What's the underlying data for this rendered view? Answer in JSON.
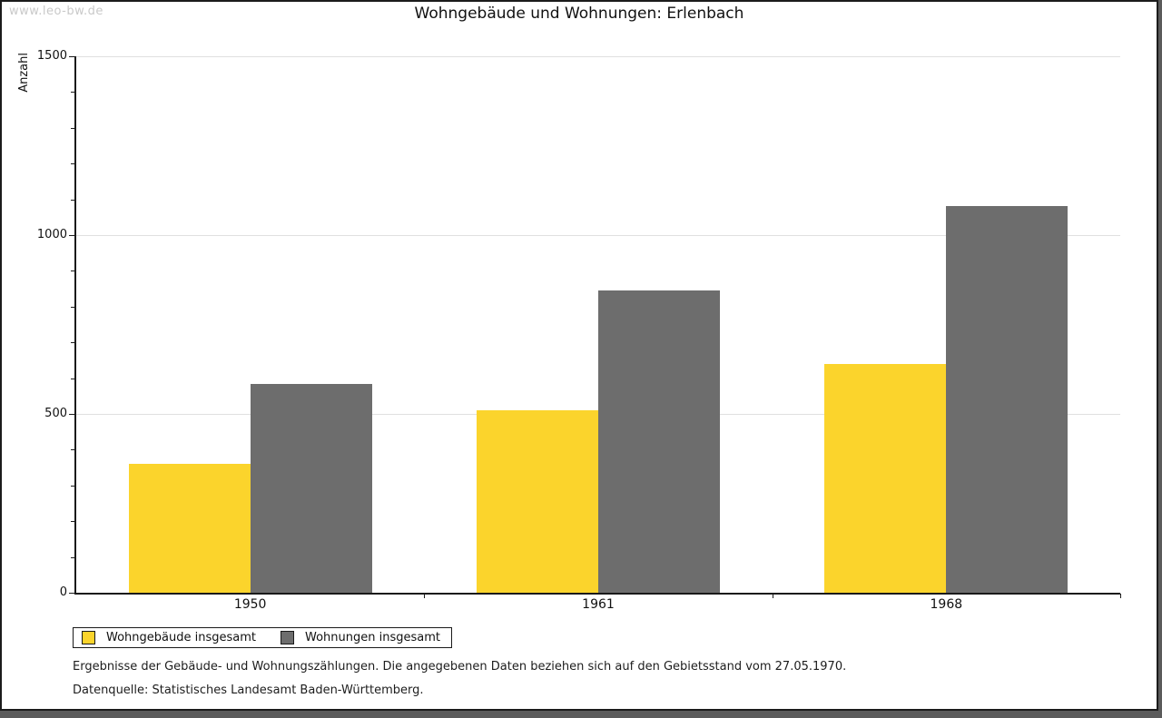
{
  "watermark": "www.leo-bw.de",
  "title": "Wohngebäude und Wohnungen: Erlenbach",
  "chart_data": {
    "type": "bar",
    "title": "Wohngebäude und Wohnungen: Erlenbach",
    "categories": [
      "1950",
      "1961",
      "1968"
    ],
    "series": [
      {
        "name": "Wohngebäude insgesamt",
        "color": "#FBD42C",
        "values": [
          360,
          510,
          640
        ]
      },
      {
        "name": "Wohnungen insgesamt",
        "color": "#6D6D6D",
        "values": [
          585,
          845,
          1080
        ]
      }
    ],
    "xlabel": "",
    "ylabel": "Anzahl",
    "ylim": [
      0,
      1500
    ],
    "yticks": [
      0,
      500,
      1000,
      1500
    ],
    "minor_tick_step": 100,
    "grid": true,
    "legend_position": "bottom"
  },
  "footer": {
    "line1": "Ergebnisse der Gebäude- und Wohnungszählungen. Die angegebenen Daten beziehen sich auf den Gebietsstand vom 27.05.1970.",
    "line2": "Datenquelle: Statistisches Landesamt Baden-Württemberg."
  }
}
